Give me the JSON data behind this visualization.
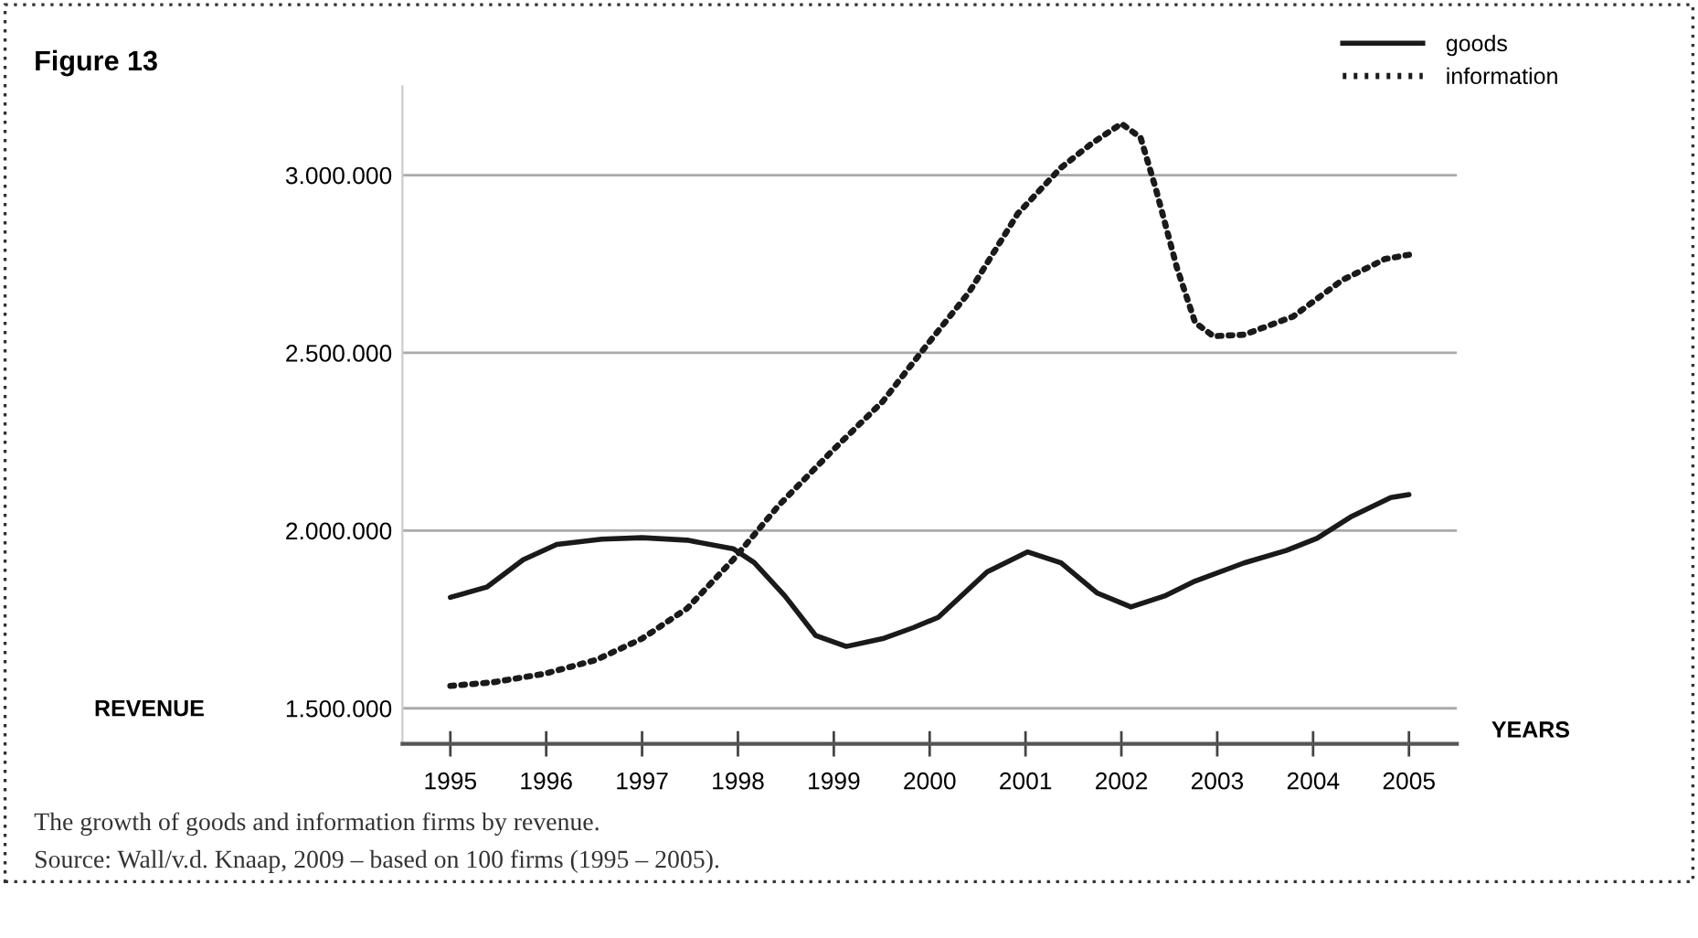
{
  "chart_data": {
    "type": "line",
    "title": "Figure 13",
    "xlabel": "YEARS",
    "ylabel": "REVENUE",
    "annotations": [
      "The growth of goods and information firms by revenue.",
      "Source: Wall/v.d. Knaap, 2009 – based on 100 firms (1995 – 2005)."
    ],
    "xlim": [
      1994.5,
      2005.5
    ],
    "ylim": [
      1400000,
      3250000
    ],
    "xticks": [
      1995,
      1996,
      1997,
      1998,
      1999,
      2000,
      2001,
      2002,
      2003,
      2004,
      2005
    ],
    "yticks": [
      {
        "value": 1500000,
        "label": "1.500.000"
      },
      {
        "value": 2000000,
        "label": "2.000.000"
      },
      {
        "value": 2500000,
        "label": "2.500.000"
      },
      {
        "value": 3000000,
        "label": "3.000.000"
      }
    ],
    "grid": "y",
    "legend": "top right",
    "series": [
      {
        "name": "goods",
        "color": "#1a1a1a",
        "line_style": "solid",
        "x": [
          1995,
          1995.38,
          1995.76,
          1996.11,
          1996.58,
          1997.0,
          1997.47,
          1997.95,
          1998.17,
          1998.49,
          1998.81,
          1999.13,
          1999.51,
          1999.83,
          2000.09,
          2000.6,
          2001.02,
          2001.37,
          2001.75,
          2002.1,
          2002.45,
          2002.77,
          2003.28,
          2003.72,
          2004.04,
          2004.39,
          2004.81,
          2005.0
        ],
        "values": [
          1812000,
          1841000,
          1918000,
          1961000,
          1976000,
          1980000,
          1973000,
          1949000,
          1910000,
          1816000,
          1705000,
          1674000,
          1696000,
          1727000,
          1756000,
          1884000,
          1940000,
          1909000,
          1824000,
          1785000,
          1816000,
          1858000,
          1909000,
          1944000,
          1978000,
          2038000,
          2093000,
          2101000
        ]
      },
      {
        "name": "information",
        "color": "#1a1a1a",
        "line_style": "dotted",
        "x": [
          1995,
          1995.44,
          1995.98,
          1996.52,
          1997.0,
          1997.47,
          1997.95,
          1998.43,
          1998.99,
          1999.51,
          1999.93,
          2000.41,
          2000.92,
          2001.37,
          2001.69,
          2002.0,
          2002.2,
          2002.36,
          2002.58,
          2002.77,
          2002.96,
          2003.28,
          2003.79,
          2004.3,
          2004.75,
          2005.0
        ],
        "values": [
          1563000,
          1573000,
          1597000,
          1636000,
          1696000,
          1781000,
          1918000,
          2072000,
          2226000,
          2363000,
          2508000,
          2670000,
          2892000,
          3021000,
          3089000,
          3145000,
          3106000,
          2961000,
          2739000,
          2585000,
          2547000,
          2551000,
          2602000,
          2704000,
          2764000,
          2776000
        ]
      }
    ]
  }
}
